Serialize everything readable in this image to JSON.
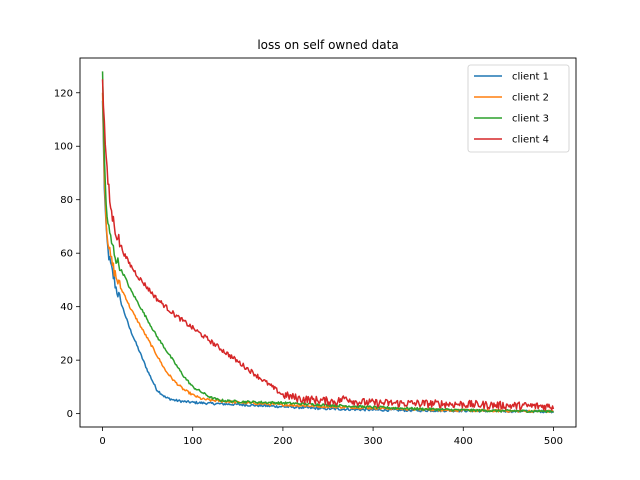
{
  "chart_data": {
    "type": "line",
    "title": "loss on self owned data",
    "xlabel": "",
    "ylabel": "",
    "xlim": [
      -25,
      525
    ],
    "ylim": [
      -5,
      133
    ],
    "xticks": [
      0,
      100,
      200,
      300,
      400,
      500
    ],
    "yticks": [
      0,
      20,
      40,
      60,
      80,
      100,
      120
    ],
    "grid": false,
    "legend_position": "top-right",
    "series": [
      {
        "name": "client 1",
        "color": "#1f77b4",
        "x": [
          0,
          2,
          4,
          6,
          8,
          10,
          15,
          20,
          25,
          30,
          40,
          50,
          60,
          70,
          80,
          90,
          100,
          120,
          150,
          200,
          250,
          300,
          350,
          400,
          450,
          500
        ],
        "y": [
          117,
          85,
          68,
          61,
          57,
          54,
          47,
          42,
          37,
          32,
          24,
          16,
          9,
          6,
          5,
          4.5,
          4.2,
          3.8,
          3.4,
          2.6,
          1.8,
          1.4,
          1.2,
          1.1,
          0.9,
          0.8
        ]
      },
      {
        "name": "client 2",
        "color": "#ff7f0e",
        "x": [
          0,
          2,
          4,
          6,
          8,
          10,
          15,
          20,
          25,
          30,
          40,
          50,
          60,
          70,
          80,
          90,
          100,
          110,
          120,
          150,
          200,
          250,
          300,
          350,
          400,
          450,
          500
        ],
        "y": [
          120,
          90,
          72,
          65,
          60,
          57,
          51,
          47,
          44,
          40,
          34,
          28,
          22,
          16,
          12,
          9,
          7,
          5.5,
          5,
          4.2,
          3.3,
          2.6,
          2.1,
          1.6,
          1.2,
          1.0,
          0.9
        ]
      },
      {
        "name": "client 3",
        "color": "#2ca02c",
        "x": [
          0,
          2,
          4,
          6,
          8,
          10,
          15,
          20,
          25,
          30,
          40,
          50,
          60,
          70,
          80,
          90,
          100,
          110,
          120,
          130,
          150,
          200,
          250,
          300,
          350,
          400,
          450,
          500
        ],
        "y": [
          128,
          95,
          78,
          71,
          67,
          64,
          58,
          54,
          51,
          47,
          41,
          35,
          29,
          24,
          19,
          14,
          10,
          8,
          6,
          5,
          4.5,
          4.0,
          3.2,
          2.4,
          1.8,
          1.3,
          1.0,
          0.9
        ]
      },
      {
        "name": "client 4",
        "color": "#d62728",
        "x": [
          0,
          2,
          5,
          8,
          10,
          12,
          15,
          20,
          25,
          30,
          40,
          50,
          60,
          70,
          80,
          100,
          120,
          140,
          160,
          180,
          200,
          220,
          240,
          260,
          270,
          280,
          300,
          350,
          400,
          450,
          500
        ],
        "y": [
          125,
          108,
          90,
          80,
          75,
          72,
          68,
          63,
          59,
          56,
          51,
          47,
          43,
          40,
          37,
          32,
          27,
          22,
          17,
          12,
          7,
          5.5,
          5,
          4.5,
          6,
          4.5,
          4,
          3.8,
          3.5,
          3,
          2.7
        ]
      }
    ]
  }
}
